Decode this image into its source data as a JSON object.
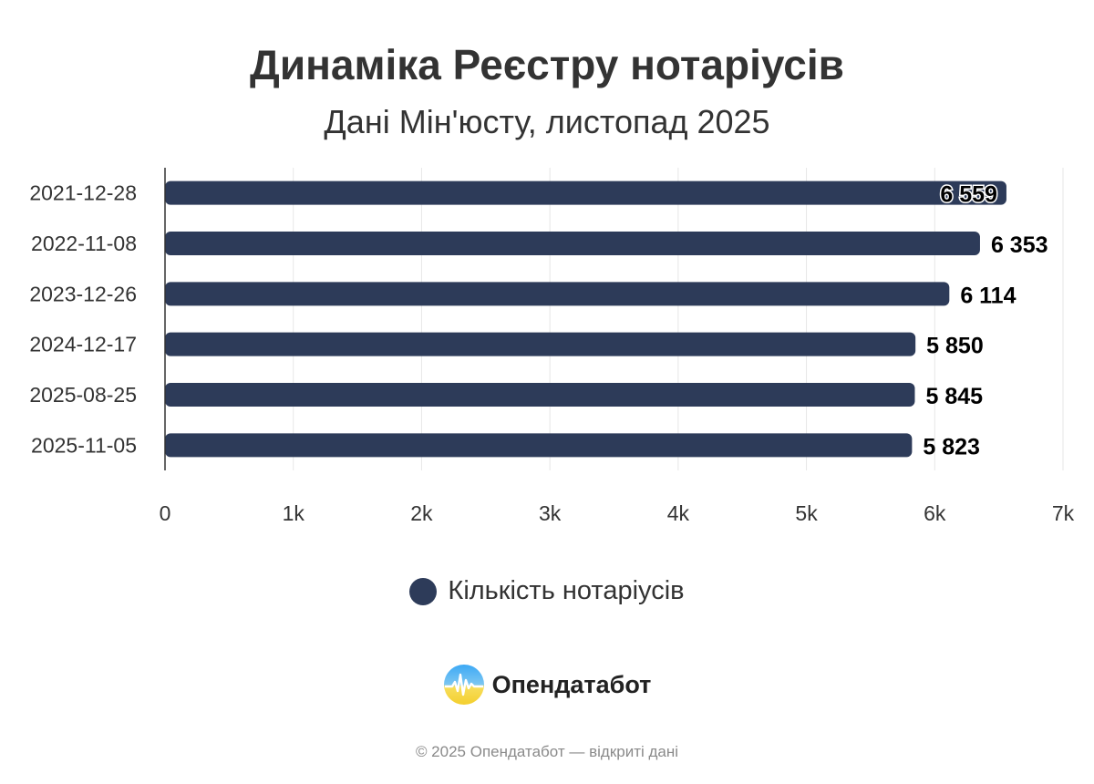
{
  "title": "Динаміка Реєстру нотаріусів",
  "subtitle": "Дані Мін'юсту, листопад 2025",
  "colors": {
    "bar": "#2d3b59",
    "grid": "#e6e6e6",
    "axis": "#333333",
    "text": "#333333"
  },
  "chart_data": {
    "type": "bar",
    "orientation": "horizontal",
    "categories": [
      "2021-12-28",
      "2022-11-08",
      "2023-12-26",
      "2024-12-17",
      "2025-08-25",
      "2025-11-05"
    ],
    "series": [
      {
        "name": "Кількість нотаріусів",
        "values": [
          6559,
          6353,
          6114,
          5850,
          5845,
          5823
        ]
      }
    ],
    "value_labels": [
      "6 559",
      "6 353",
      "6 114",
      "5 850",
      "5 845",
      "5 823"
    ],
    "xlim": [
      0,
      7000
    ],
    "x_ticks": [
      0,
      1000,
      2000,
      3000,
      4000,
      5000,
      6000,
      7000
    ],
    "x_tick_labels": [
      "0",
      "1k",
      "2k",
      "3k",
      "4k",
      "5k",
      "6k",
      "7k"
    ],
    "grid": true,
    "legend_position": "bottom"
  },
  "legend": {
    "label": "Кількість нотаріусів",
    "icon": "circle-marker-icon"
  },
  "brand": {
    "name": "Опендатабот",
    "logo": "opendatabot-logo-icon"
  },
  "footer": "© 2025 Опендатабот — відкриті дані"
}
